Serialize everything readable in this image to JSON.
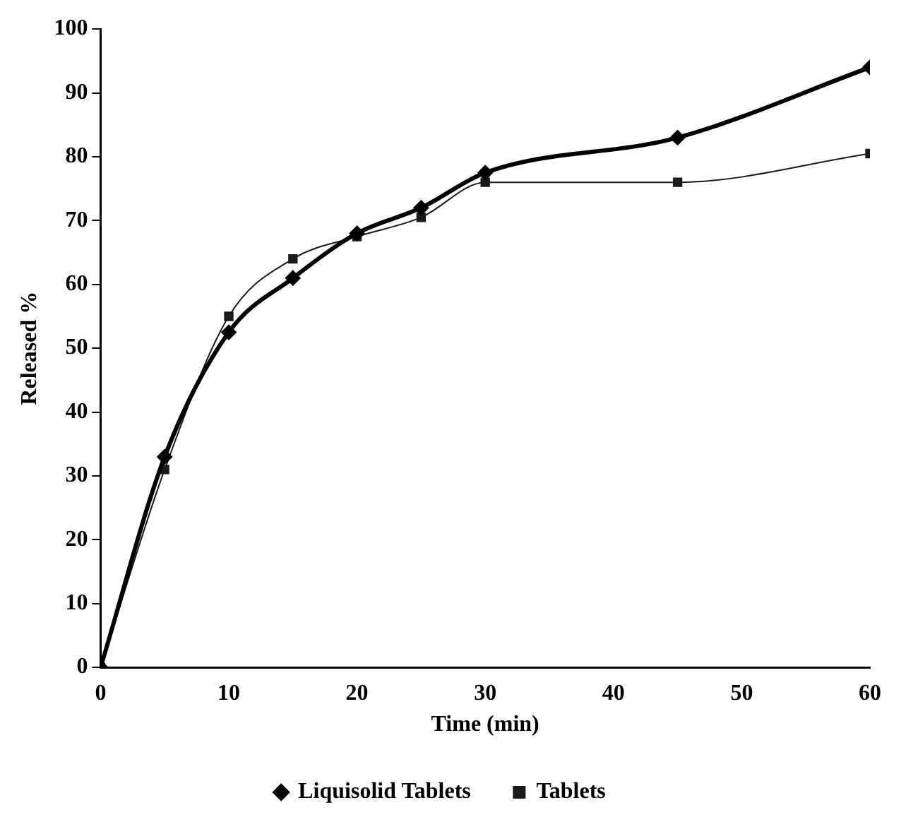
{
  "chart_data": {
    "type": "line",
    "xlabel": "Time (min)",
    "ylabel": "Released %",
    "x": [
      0,
      5,
      10,
      15,
      20,
      25,
      30,
      45,
      60
    ],
    "series": [
      {
        "name": "Liquisolid Tablets",
        "color": "#000000",
        "marker": "diamond",
        "values": [
          0,
          33,
          52.5,
          61,
          68,
          72,
          77.5,
          83,
          94
        ]
      },
      {
        "name": "Tablets",
        "color": "#1a1a1a",
        "marker": "square",
        "values": [
          0,
          31,
          55,
          64,
          67.5,
          70.5,
          76,
          76,
          80.5
        ]
      }
    ],
    "xlim": [
      0,
      60
    ],
    "xticks": [
      0,
      10,
      20,
      30,
      40,
      50,
      60
    ],
    "ylim": [
      0,
      100
    ],
    "yticks": [
      0,
      10,
      20,
      30,
      40,
      50,
      60,
      70,
      80,
      90,
      100
    ],
    "grid": false,
    "legend": "bottom"
  }
}
